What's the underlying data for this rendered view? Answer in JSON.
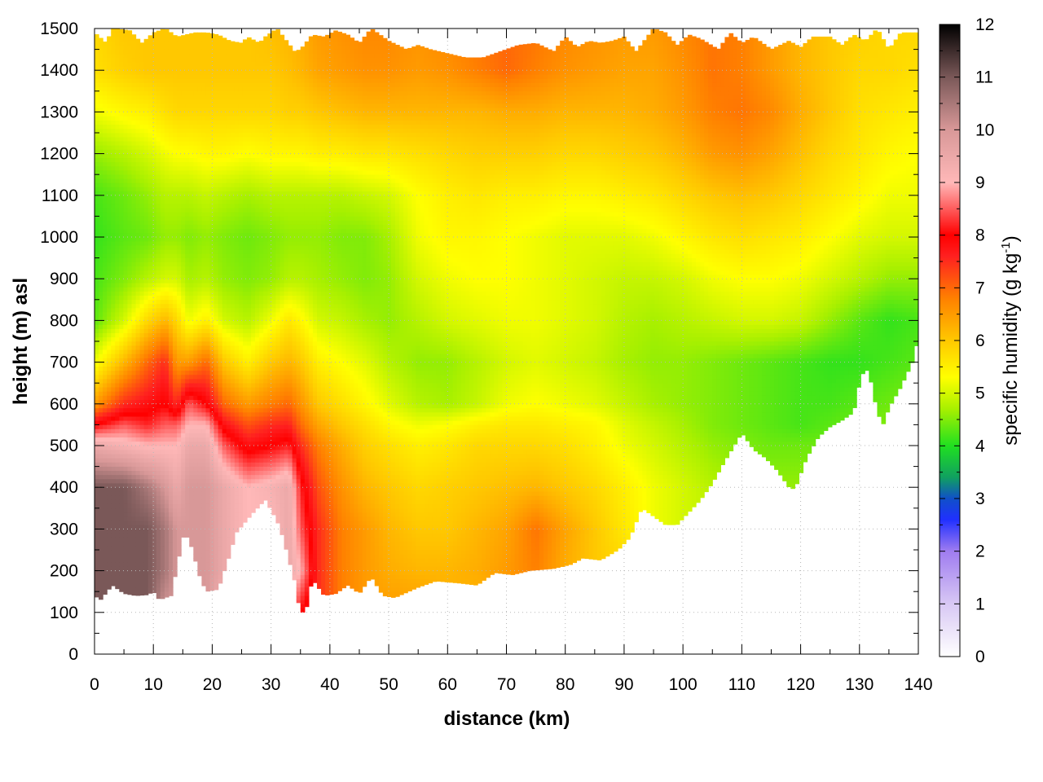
{
  "chart_data": {
    "type": "heatmap",
    "title": "",
    "xlabel": "distance (km)",
    "ylabel": "height (m) asl",
    "xlim": [
      0,
      140
    ],
    "ylim": [
      0,
      1500
    ],
    "x_ticks": [
      "0",
      "10",
      "20",
      "30",
      "40",
      "50",
      "60",
      "70",
      "80",
      "90",
      "100",
      "110",
      "120",
      "130",
      "140"
    ],
    "y_ticks": [
      "0",
      "100",
      "200",
      "300",
      "400",
      "500",
      "600",
      "700",
      "800",
      "900",
      "1000",
      "1100",
      "1200",
      "1300",
      "1400",
      "1500"
    ],
    "grid": true,
    "colorbar": {
      "label_main": "specific humidity (g kg",
      "label_sup": "-1",
      "label_close": ")",
      "range": [
        0,
        12
      ],
      "ticks": [
        "0",
        "1",
        "2",
        "3",
        "4",
        "5",
        "6",
        "7",
        "8",
        "9",
        "10",
        "11",
        "12"
      ],
      "stops": [
        {
          "v": 0,
          "c": "#ffffff"
        },
        {
          "v": 1,
          "c": "#d8c8f4"
        },
        {
          "v": 2,
          "c": "#9f7cf0"
        },
        {
          "v": 2.6,
          "c": "#2030ff"
        },
        {
          "v": 3,
          "c": "#1050c8"
        },
        {
          "v": 3.4,
          "c": "#10a060"
        },
        {
          "v": 4,
          "c": "#20e020"
        },
        {
          "v": 4.7,
          "c": "#a8f000"
        },
        {
          "v": 5.3,
          "c": "#ffff00"
        },
        {
          "v": 6,
          "c": "#ffc800"
        },
        {
          "v": 6.8,
          "c": "#ff8000"
        },
        {
          "v": 7.6,
          "c": "#ff2020"
        },
        {
          "v": 8,
          "c": "#ff0000"
        },
        {
          "v": 9,
          "c": "#ffb8b8"
        },
        {
          "v": 10,
          "c": "#d89898"
        },
        {
          "v": 11,
          "c": "#7a5858"
        },
        {
          "v": 12,
          "c": "#000000"
        }
      ]
    },
    "terrain_bottom": [
      [
        0,
        140
      ],
      [
        1,
        130
      ],
      [
        3,
        165
      ],
      [
        5,
        145
      ],
      [
        7,
        140
      ],
      [
        9,
        142
      ],
      [
        10,
        150
      ],
      [
        11,
        130
      ],
      [
        13,
        140
      ],
      [
        15,
        280
      ],
      [
        16,
        280
      ],
      [
        18,
        180
      ],
      [
        19,
        150
      ],
      [
        21,
        155
      ],
      [
        23,
        240
      ],
      [
        24,
        290
      ],
      [
        27,
        340
      ],
      [
        29,
        370
      ],
      [
        31,
        320
      ],
      [
        32,
        280
      ],
      [
        34,
        175
      ],
      [
        35,
        95
      ],
      [
        36,
        110
      ],
      [
        37,
        180
      ],
      [
        39,
        140
      ],
      [
        41,
        145
      ],
      [
        43,
        165
      ],
      [
        45,
        145
      ],
      [
        47,
        185
      ],
      [
        49,
        140
      ],
      [
        51,
        135
      ],
      [
        55,
        160
      ],
      [
        58,
        175
      ],
      [
        62,
        170
      ],
      [
        65,
        165
      ],
      [
        68,
        195
      ],
      [
        71,
        190
      ],
      [
        74,
        200
      ],
      [
        78,
        205
      ],
      [
        81,
        215
      ],
      [
        83,
        230
      ],
      [
        86,
        225
      ],
      [
        89,
        250
      ],
      [
        91,
        280
      ],
      [
        93,
        350
      ],
      [
        95,
        330
      ],
      [
        97,
        310
      ],
      [
        99,
        310
      ],
      [
        101,
        340
      ],
      [
        103,
        370
      ],
      [
        105,
        410
      ],
      [
        107,
        460
      ],
      [
        110,
        530
      ],
      [
        112,
        490
      ],
      [
        114,
        470
      ],
      [
        116,
        440
      ],
      [
        118,
        400
      ],
      [
        119,
        395
      ],
      [
        121,
        470
      ],
      [
        123,
        520
      ],
      [
        125,
        545
      ],
      [
        127,
        560
      ],
      [
        129,
        580
      ],
      [
        130,
        650
      ],
      [
        131,
        690
      ],
      [
        132,
        650
      ],
      [
        133,
        580
      ],
      [
        134,
        550
      ],
      [
        135,
        590
      ],
      [
        137,
        640
      ],
      [
        139,
        700
      ],
      [
        140,
        760
      ]
    ],
    "top_envelope": [
      [
        0,
        1490
      ],
      [
        2,
        1465
      ],
      [
        3,
        1500
      ],
      [
        6,
        1495
      ],
      [
        8,
        1465
      ],
      [
        10,
        1490
      ],
      [
        12,
        1500
      ],
      [
        14,
        1480
      ],
      [
        17,
        1490
      ],
      [
        19,
        1490
      ],
      [
        21,
        1485
      ],
      [
        23,
        1470
      ],
      [
        25,
        1465
      ],
      [
        26,
        1480
      ],
      [
        28,
        1465
      ],
      [
        29,
        1480
      ],
      [
        31,
        1500
      ],
      [
        34,
        1445
      ],
      [
        35,
        1450
      ],
      [
        37,
        1485
      ],
      [
        39,
        1480
      ],
      [
        41,
        1495
      ],
      [
        43,
        1485
      ],
      [
        45,
        1465
      ],
      [
        47,
        1500
      ],
      [
        50,
        1470
      ],
      [
        53,
        1450
      ],
      [
        55,
        1460
      ],
      [
        57,
        1450
      ],
      [
        60,
        1440
      ],
      [
        63,
        1430
      ],
      [
        66,
        1430
      ],
      [
        69,
        1445
      ],
      [
        72,
        1460
      ],
      [
        75,
        1465
      ],
      [
        78,
        1445
      ],
      [
        80,
        1480
      ],
      [
        82,
        1455
      ],
      [
        84,
        1470
      ],
      [
        86,
        1465
      ],
      [
        88,
        1470
      ],
      [
        90,
        1480
      ],
      [
        92,
        1445
      ],
      [
        95,
        1500
      ],
      [
        97,
        1490
      ],
      [
        99,
        1460
      ],
      [
        101,
        1485
      ],
      [
        103,
        1475
      ],
      [
        106,
        1450
      ],
      [
        108,
        1490
      ],
      [
        110,
        1465
      ],
      [
        112,
        1480
      ],
      [
        115,
        1450
      ],
      [
        118,
        1470
      ],
      [
        120,
        1455
      ],
      [
        122,
        1480
      ],
      [
        125,
        1480
      ],
      [
        127,
        1460
      ],
      [
        129,
        1485
      ],
      [
        131,
        1470
      ],
      [
        133,
        1500
      ],
      [
        135,
        1450
      ],
      [
        137,
        1490
      ],
      [
        139,
        1490
      ],
      [
        140,
        1490
      ]
    ],
    "field_nodes": {
      "x": [
        0,
        5,
        9,
        12,
        14,
        16,
        19,
        22,
        26,
        30,
        33,
        35,
        38,
        42,
        46,
        50,
        55,
        60,
        65,
        70,
        75,
        80,
        85,
        90,
        95,
        100,
        105,
        110,
        115,
        120,
        125,
        130,
        135,
        140
      ],
      "y": [
        100,
        200,
        300,
        400,
        500,
        550,
        600,
        700,
        800,
        900,
        1000,
        1100,
        1200,
        1300,
        1400,
        1500
      ],
      "q": [
        [
          11,
          11,
          11,
          10,
          10,
          10,
          10,
          9,
          9,
          8.5,
          9,
          8,
          7.5,
          6.8,
          6.5,
          6.5,
          6.5,
          6.3,
          6.2,
          6.3,
          6.5,
          6.2,
          6,
          5.8,
          5.5,
          5,
          5,
          5,
          5,
          5,
          4.8,
          4.8,
          5,
          5
        ],
        [
          11,
          11,
          11,
          10.5,
          10,
          10,
          10,
          9.5,
          9,
          9,
          9.5,
          9,
          7.5,
          6.8,
          6.5,
          6.3,
          6.2,
          6.2,
          6.3,
          6.5,
          6.8,
          6.3,
          6,
          5.8,
          5.5,
          5,
          5,
          5,
          5,
          5,
          4.8,
          4.8,
          5,
          5
        ],
        [
          11,
          11,
          11,
          10.5,
          10,
          10,
          10,
          9.5,
          9,
          9,
          9.5,
          8.5,
          7.5,
          6.8,
          6.5,
          6.2,
          6,
          6,
          6.2,
          6.4,
          6.9,
          6.4,
          6,
          5.6,
          5.2,
          5,
          4.9,
          4.8,
          4.8,
          4.7,
          4.8,
          4.8,
          4.9,
          5
        ],
        [
          11,
          11,
          10.5,
          10,
          9.5,
          10,
          10,
          9.5,
          9,
          9.2,
          9.5,
          8.2,
          7.2,
          6.6,
          6.2,
          6,
          5.8,
          5.9,
          6,
          6.1,
          6.2,
          6,
          5.8,
          5.5,
          5.2,
          5,
          4.8,
          4.7,
          4.6,
          4.6,
          4.6,
          4.6,
          4.7,
          4.8
        ],
        [
          9.5,
          9.2,
          9,
          9,
          9,
          9.5,
          9.5,
          8.5,
          7.8,
          8,
          8.2,
          7.5,
          6.8,
          6.3,
          5.9,
          5.7,
          5.5,
          5.6,
          5.8,
          5.8,
          5.8,
          5.7,
          5.5,
          5.2,
          5,
          4.8,
          4.6,
          4.5,
          4.4,
          4.4,
          4.4,
          4.5,
          4.6,
          4.7
        ],
        [
          8,
          8.5,
          8.2,
          8.5,
          8.5,
          9,
          9,
          7.8,
          7.2,
          7.5,
          7.6,
          7,
          6.4,
          6,
          5.7,
          5.4,
          5.2,
          5.3,
          5.5,
          5.6,
          5.6,
          5.5,
          5.4,
          5.1,
          4.9,
          4.7,
          4.5,
          4.4,
          4.3,
          4.2,
          4.3,
          4.4,
          4.5,
          4.6
        ],
        [
          6.5,
          7.5,
          7.8,
          8,
          7.5,
          8.5,
          8,
          7,
          6.5,
          6.8,
          7,
          6.6,
          6,
          5.7,
          5.4,
          5.1,
          4.8,
          4.7,
          4.9,
          5.2,
          5.3,
          5.2,
          5.1,
          4.9,
          4.7,
          4.6,
          4.5,
          4.4,
          4.3,
          4.2,
          4.2,
          4.3,
          4.4,
          4.5
        ],
        [
          5.2,
          6.2,
          7,
          7.5,
          6.5,
          6.5,
          7,
          6,
          5.5,
          6,
          6.2,
          6,
          5.5,
          5.3,
          5.1,
          4.8,
          4.6,
          4.6,
          4.8,
          5,
          5.1,
          5,
          4.9,
          4.7,
          4.6,
          4.6,
          4.5,
          4.4,
          4.3,
          4.2,
          4.1,
          4.1,
          4.2,
          4.3
        ],
        [
          4.3,
          5,
          5.8,
          6.2,
          5.8,
          5.2,
          5.5,
          5,
          4.8,
          5.2,
          5.6,
          5.4,
          5,
          4.9,
          4.7,
          4.6,
          4.8,
          5,
          5.1,
          5.2,
          5.2,
          5.1,
          5,
          4.8,
          4.7,
          4.8,
          4.9,
          5,
          5,
          4.9,
          4.6,
          4.3,
          4.1,
          4.2
        ],
        [
          4.2,
          4.5,
          4.8,
          5,
          5,
          4.7,
          4.8,
          4.6,
          4.5,
          4.6,
          4.8,
          4.8,
          4.7,
          4.6,
          4.5,
          4.6,
          5,
          5.2,
          5.3,
          5.3,
          5.2,
          5.1,
          5,
          4.9,
          4.9,
          5,
          5.2,
          5.3,
          5.3,
          5.2,
          5,
          4.8,
          4.6,
          4.6
        ],
        [
          4.1,
          4.3,
          4.4,
          4.6,
          4.6,
          4.5,
          4.6,
          4.5,
          4.4,
          4.5,
          4.6,
          4.6,
          4.6,
          4.5,
          4.5,
          4.7,
          5.2,
          5.4,
          5.4,
          5.3,
          5.2,
          5.1,
          5.1,
          5.1,
          5.2,
          5.4,
          5.6,
          5.7,
          5.6,
          5.5,
          5.3,
          5.1,
          5,
          5
        ],
        [
          4.2,
          4.4,
          4.6,
          4.8,
          4.8,
          4.8,
          4.9,
          4.8,
          4.7,
          4.8,
          4.8,
          4.8,
          4.8,
          4.8,
          4.9,
          5,
          5.3,
          5.5,
          5.6,
          5.5,
          5.5,
          5.4,
          5.4,
          5.5,
          5.6,
          5.8,
          6,
          6.1,
          6,
          5.8,
          5.6,
          5.4,
          5.2,
          5.2
        ],
        [
          4.6,
          4.8,
          5,
          5.2,
          5.3,
          5.3,
          5.4,
          5.4,
          5.3,
          5.4,
          5.4,
          5.4,
          5.5,
          5.5,
          5.6,
          5.6,
          5.7,
          5.8,
          5.9,
          5.9,
          5.9,
          5.8,
          5.8,
          5.9,
          6,
          6.2,
          6.5,
          6.6,
          6.4,
          6.1,
          5.8,
          5.6,
          5.4,
          5.3
        ],
        [
          5.2,
          5.4,
          5.5,
          5.7,
          5.8,
          5.8,
          5.8,
          5.8,
          5.8,
          5.8,
          5.9,
          5.9,
          6,
          6.1,
          6.2,
          6.2,
          6.2,
          6.2,
          6.2,
          6.3,
          6.3,
          6.2,
          6.2,
          6.2,
          6.3,
          6.5,
          6.8,
          6.9,
          6.7,
          6.3,
          6,
          5.7,
          5.6,
          5.5
        ],
        [
          5.7,
          5.9,
          6,
          6,
          6,
          6,
          6,
          6,
          6,
          6,
          6.1,
          6.2,
          6.4,
          6.5,
          6.6,
          6.6,
          6.5,
          6.6,
          6.8,
          7,
          6.8,
          6.6,
          6.5,
          6.4,
          6.4,
          6.6,
          6.9,
          6.8,
          6.5,
          6.2,
          6,
          5.8,
          5.8,
          5.7
        ],
        [
          5.8,
          6,
          6,
          6,
          6,
          6,
          6,
          6,
          6,
          6.1,
          6.2,
          6.3,
          6.5,
          6.6,
          6.7,
          6.7,
          6.6,
          6.7,
          6.9,
          7,
          6.9,
          6.7,
          6.6,
          6.5,
          6.5,
          6.7,
          6.9,
          6.8,
          6.5,
          6.2,
          6,
          5.9,
          5.8,
          5.8
        ]
      ]
    }
  }
}
